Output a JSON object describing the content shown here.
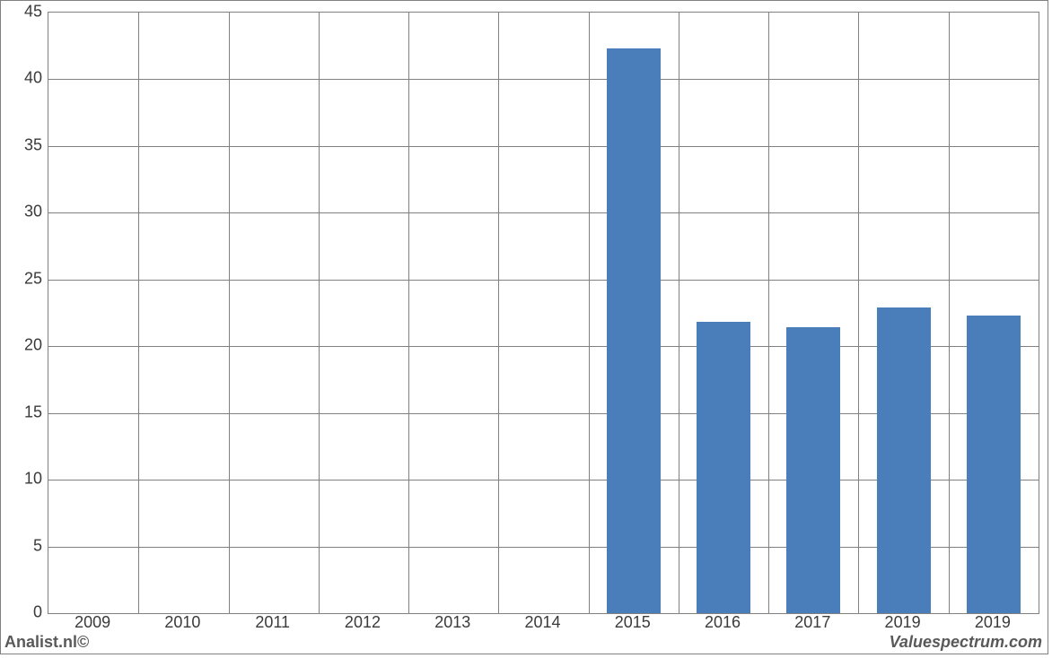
{
  "chart": {
    "type": "bar",
    "categories": [
      "2009",
      "2010",
      "2011",
      "2012",
      "2013",
      "2014",
      "2015",
      "2016",
      "2017",
      "2019",
      "2019"
    ],
    "values": [
      0,
      0,
      0,
      0,
      0,
      0,
      42.3,
      21.8,
      21.4,
      22.9,
      22.3
    ],
    "bar_color": "#4a7ebb",
    "grid_color": "#808080",
    "background_color": "#ffffff",
    "ylim": [
      0,
      45
    ],
    "ytick_step": 5,
    "yticks": [
      "0",
      "5",
      "10",
      "15",
      "20",
      "25",
      "30",
      "35",
      "40",
      "45"
    ],
    "bar_width_ratio": 0.6,
    "label_fontsize": 18,
    "label_color": "#3a3a3a"
  },
  "footer": {
    "left": "Analist.nl©",
    "right": "Valuespectrum.com"
  }
}
